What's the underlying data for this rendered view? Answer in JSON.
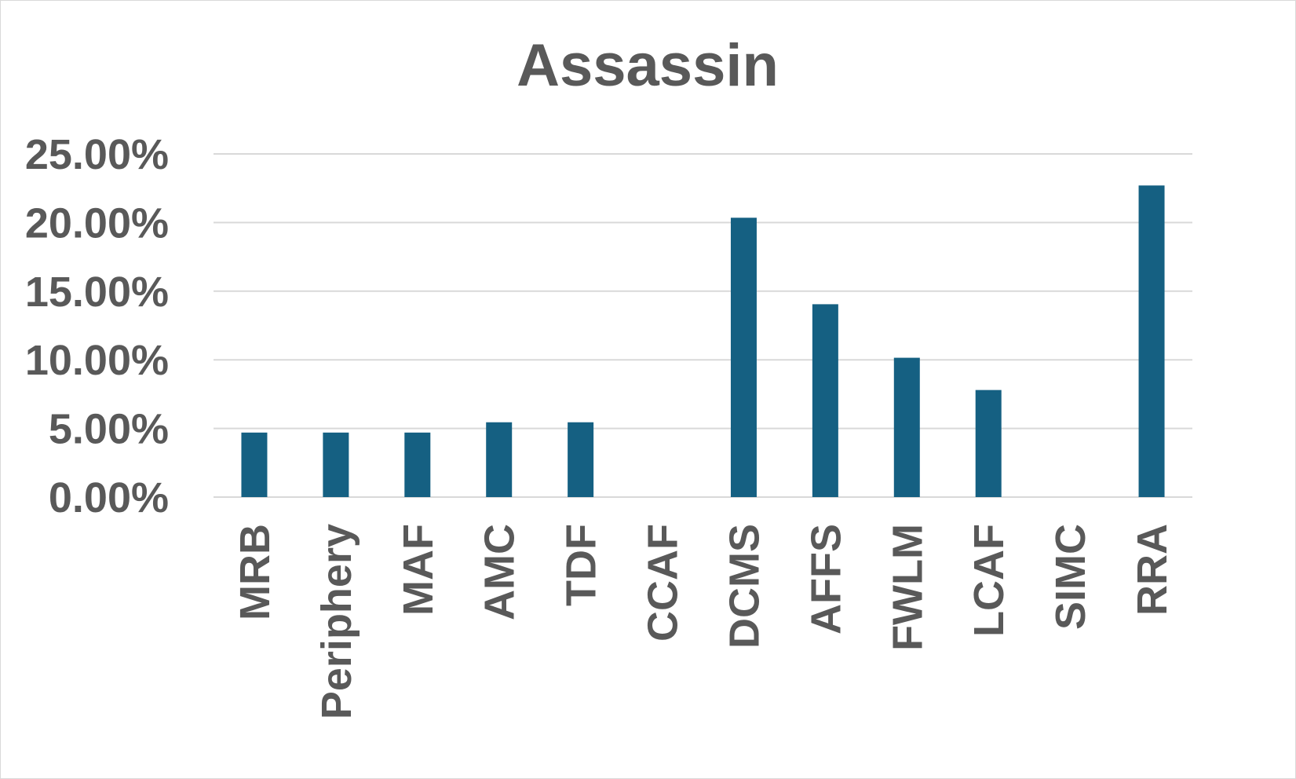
{
  "chart_data": {
    "type": "bar",
    "title": "Assassin",
    "xlabel": "",
    "ylabel": "",
    "categories": [
      "MRB",
      "Periphery",
      "MAF",
      "AMC",
      "TDF",
      "CCAF",
      "DCMS",
      "AFFS",
      "FWLM",
      "LCAF",
      "SIMC",
      "RRA"
    ],
    "values": [
      4.7,
      4.7,
      4.7,
      5.45,
      5.45,
      0,
      20.35,
      14.05,
      10.15,
      7.8,
      0,
      22.7
    ],
    "value_format": "percent",
    "ylim": [
      0,
      25
    ],
    "yticks": [
      0,
      5,
      10,
      15,
      20,
      25
    ],
    "ytick_labels": [
      "0.00%",
      "5.00%",
      "10.00%",
      "15.00%",
      "20.00%",
      "25.00%"
    ],
    "grid": true,
    "legend": "none",
    "bar_color": "#156082",
    "text_color": "#595959",
    "grid_color": "#d9d9d9"
  }
}
